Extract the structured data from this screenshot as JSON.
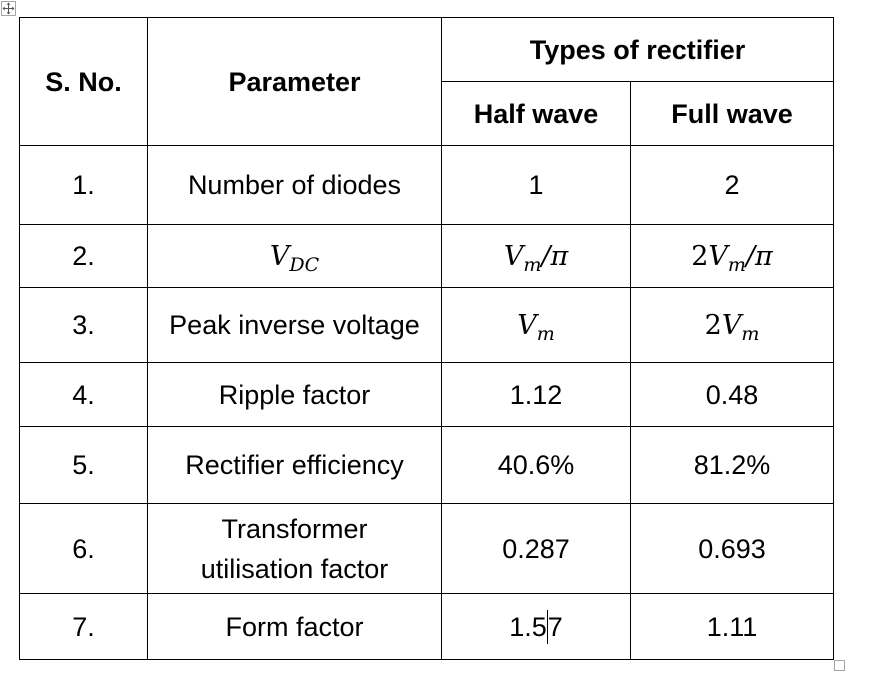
{
  "table": {
    "header": {
      "sno": "S. No.",
      "parameter": "Parameter",
      "group": "Types of rectifier",
      "half": "Half wave",
      "full": "Full wave"
    },
    "rows": [
      {
        "no": "1.",
        "param": "Number of diodes",
        "half": "1",
        "full": "2"
      },
      {
        "no": "2.",
        "param_var": "V",
        "param_sub": "DC",
        "half_var": "V",
        "half_sub": "m",
        "half_tail": "/π",
        "full_pre": "2",
        "full_var": "V",
        "full_sub": "m",
        "full_tail": "/π"
      },
      {
        "no": "3.",
        "param": "Peak inverse voltage",
        "half_var": "V",
        "half_sub": "m",
        "full_pre": "2",
        "full_var": "V",
        "full_sub": "m"
      },
      {
        "no": "4.",
        "param": "Ripple factor",
        "half": "1.12",
        "full": "0.48"
      },
      {
        "no": "5.",
        "param": "Rectifier efficiency",
        "half": "40.6%",
        "full": "81.2%"
      },
      {
        "no": "6.",
        "param_line1": "Transformer",
        "param_line2": "utilisation factor",
        "half": "0.287",
        "full": "0.693"
      },
      {
        "no": "7.",
        "param": "Form factor",
        "half_a": "1.5",
        "half_b": "7",
        "full": "1.11"
      }
    ]
  }
}
